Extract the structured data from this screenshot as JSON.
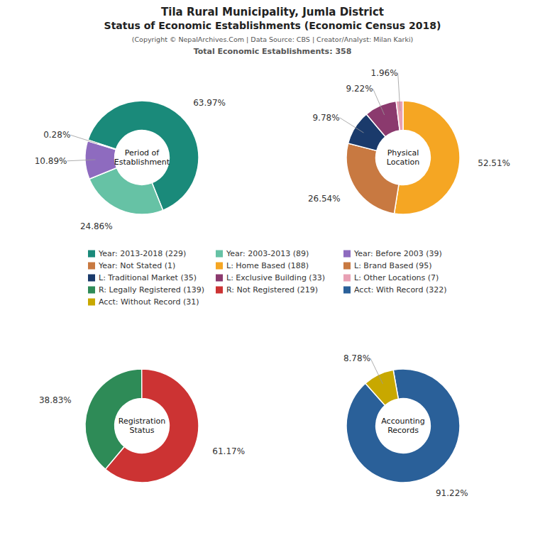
{
  "title": [
    "Tila Rural Municipality, Jumla District",
    "Status of Economic Establishments (Economic Census 2018)"
  ],
  "subtitle": [
    "(Copyright © NepalArchives.Com | Data Source: CBS | Creator/Analyst: Milan Karki)",
    "Total Economic Establishments: 358"
  ],
  "chart_data": [
    {
      "type": "pie",
      "title": "Period of\nEstablishment",
      "categories": [
        "Year: 2013-2018 (229)",
        "Year: 2003-2013 (89)",
        "Year: Before 2003 (39)",
        "Year: Not Stated (1)"
      ],
      "values": [
        63.97,
        24.86,
        10.89,
        0.28
      ],
      "value_labels": [
        "63.97%",
        "24.86%",
        "10.89%",
        "0.28%"
      ],
      "colors": [
        "#1a8a7a",
        "#66c2a5",
        "#8e6bbf",
        "#c87941"
      ],
      "data_labels": true,
      "legend": "center"
    },
    {
      "type": "pie",
      "title": "Physical\nLocation",
      "categories": [
        "L: Home Based (188)",
        "L: Brand Based (95)",
        "L: Traditional Market (35)",
        "L: Exclusive Building (33)",
        "L: Other Locations (7)"
      ],
      "values": [
        52.51,
        26.54,
        9.78,
        9.22,
        1.96
      ],
      "value_labels": [
        "52.51%",
        "26.54%",
        "9.78%",
        "9.22%",
        "1.96%"
      ],
      "colors": [
        "#f5a623",
        "#c87941",
        "#1a3a6b",
        "#8b3a6e",
        "#e8a0b4"
      ],
      "data_labels": true,
      "legend": "center"
    },
    {
      "type": "pie",
      "title": "Registration\nStatus",
      "categories": [
        "R: Legally Registered (139)",
        "R: Not Registered (219)"
      ],
      "values": [
        38.83,
        61.17
      ],
      "value_labels": [
        "38.83%",
        "61.17%"
      ],
      "colors": [
        "#2e8b57",
        "#cc3333"
      ],
      "data_labels": true,
      "legend": "center"
    },
    {
      "type": "pie",
      "title": "Accounting\nRecords",
      "categories": [
        "Acct: With Record (322)",
        "Acct: Without Record (31)"
      ],
      "values": [
        91.22,
        8.78
      ],
      "value_labels": [
        "91.22%",
        "8.78%"
      ],
      "colors": [
        "#2a6099",
        "#c8a800"
      ],
      "data_labels": true,
      "legend": "center"
    }
  ]
}
